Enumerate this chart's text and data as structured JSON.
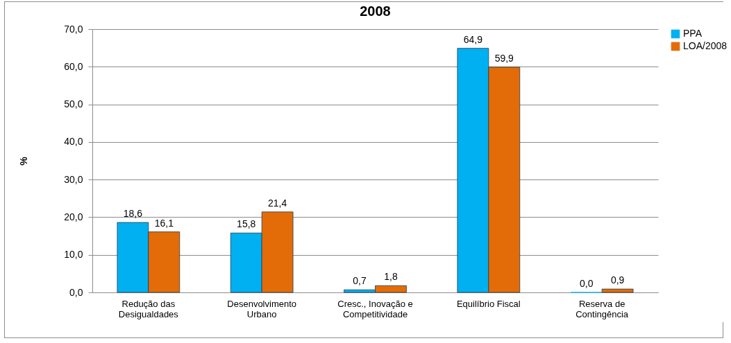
{
  "chart_data": {
    "type": "bar",
    "title": "2008",
    "ylabel": "%",
    "categories": [
      "Redução das Desigualdades",
      "Desenvolvimento Urbano",
      "Cresc., Inovação e Competitividade",
      "Equilíbrio Fiscal",
      "Reserva de Contingência"
    ],
    "series": [
      {
        "name": "PPA",
        "color": "#00b0f0",
        "values": [
          18.6,
          15.8,
          0.7,
          64.9,
          0.0
        ],
        "value_labels": [
          "18,6",
          "15,8",
          "0,7",
          "64,9",
          "0,0"
        ]
      },
      {
        "name": "LOA/2008",
        "color": "#e36c09",
        "values": [
          16.1,
          21.4,
          1.8,
          59.9,
          0.9
        ],
        "value_labels": [
          "16,1",
          "21,4",
          "1,8",
          "59,9",
          "0,9"
        ]
      }
    ],
    "ylim": [
      0,
      70
    ],
    "yticks": [
      {
        "value": 0,
        "label": "0,0"
      },
      {
        "value": 10,
        "label": "10,0"
      },
      {
        "value": 20,
        "label": "20,0"
      },
      {
        "value": 30,
        "label": "30,0"
      },
      {
        "value": 40,
        "label": "40,0"
      },
      {
        "value": 50,
        "label": "50,0"
      },
      {
        "value": 60,
        "label": "60,0"
      },
      {
        "value": 70,
        "label": "70,0"
      }
    ],
    "grid": "y",
    "legend": "right"
  }
}
